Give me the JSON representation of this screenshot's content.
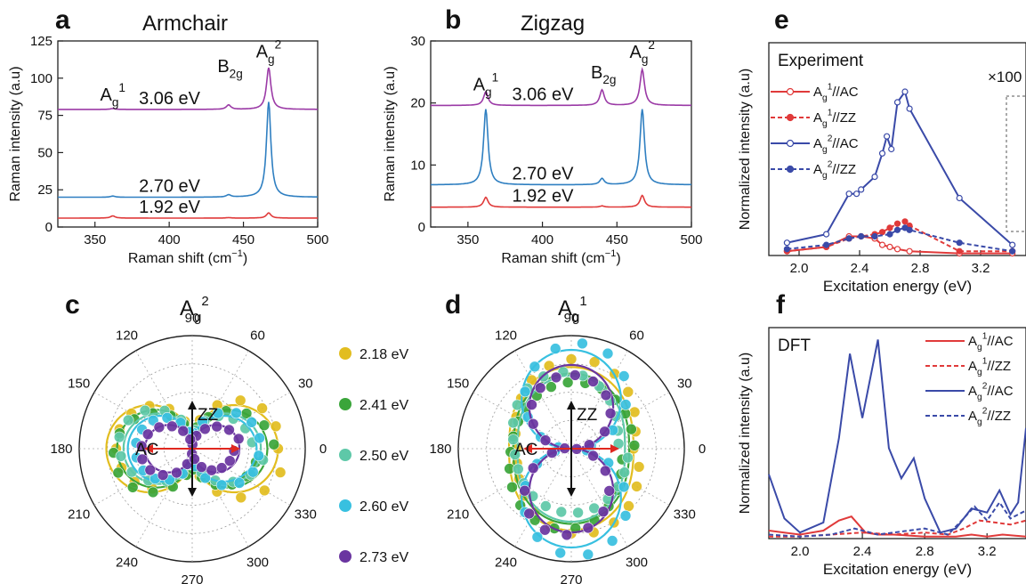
{
  "figure": {
    "panels": [
      {
        "letter": "a",
        "title": "Armchair"
      },
      {
        "letter": "b",
        "title": "Zigzag"
      },
      {
        "letter": "c",
        "title": "A",
        "title_sub": "g",
        "title_sup": "2"
      },
      {
        "letter": "d",
        "title": "A",
        "title_sub": "g",
        "title_sup": "1"
      },
      {
        "letter": "e"
      },
      {
        "letter": "f"
      }
    ]
  },
  "chart_data": [
    {
      "id": "a",
      "type": "line",
      "title": "Armchair",
      "xlabel": "Raman shift (cm⁻¹)",
      "ylabel": "Raman intensity (a.u)",
      "xlim": [
        325,
        500
      ],
      "ylim": [
        0,
        125
      ],
      "xticks": [
        350,
        400,
        450,
        500
      ],
      "yticks": [
        0,
        25,
        50,
        75,
        100,
        125
      ],
      "peak_labels": [
        {
          "text": "A",
          "sub": "g",
          "sup": "1",
          "x": 362,
          "y": 85
        },
        {
          "text": "B",
          "sub": "2g",
          "sup": "",
          "x": 441,
          "y": 104
        },
        {
          "text": "A",
          "sub": "g",
          "sup": "2",
          "x": 467,
          "y": 114
        }
      ],
      "series": [
        {
          "name": "3.06 eV",
          "color": "#9b3aa6",
          "baseline": 79,
          "peaks": [
            {
              "x": 362,
              "h": 0.6
            },
            {
              "x": 440,
              "h": 3
            },
            {
              "x": 467,
              "h": 28
            }
          ]
        },
        {
          "name": "2.70 eV",
          "color": "#2f7fc1",
          "baseline": 20,
          "peaks": [
            {
              "x": 362,
              "h": 0.8
            },
            {
              "x": 440,
              "h": 1.5
            },
            {
              "x": 467,
              "h": 64
            }
          ]
        },
        {
          "name": "1.92 eV",
          "color": "#e03a3a",
          "baseline": 6,
          "peaks": [
            {
              "x": 362,
              "h": 1.5
            },
            {
              "x": 440,
              "h": 0.3
            },
            {
              "x": 467,
              "h": 3.5
            }
          ]
        }
      ]
    },
    {
      "id": "b",
      "type": "line",
      "title": "Zigzag",
      "xlabel": "Raman shift (cm⁻¹)",
      "ylabel": "Raman intensity (a.u)",
      "xlim": [
        325,
        500
      ],
      "ylim": [
        0,
        30
      ],
      "xticks": [
        350,
        400,
        450,
        500
      ],
      "yticks": [
        0,
        10,
        20,
        30
      ],
      "peak_labels": [
        {
          "text": "A",
          "sub": "g",
          "sup": "1",
          "x": 362,
          "y": 22
        },
        {
          "text": "B",
          "sub": "2g",
          "sup": "",
          "x": 441,
          "y": 24
        },
        {
          "text": "A",
          "sub": "g",
          "sup": "2",
          "x": 467,
          "y": 27.3
        }
      ],
      "series": [
        {
          "name": "3.06 eV",
          "color": "#9b3aa6",
          "baseline": 19.6,
          "peaks": [
            {
              "x": 362,
              "h": 2.2
            },
            {
              "x": 440,
              "h": 2.5
            },
            {
              "x": 467,
              "h": 5.8
            }
          ]
        },
        {
          "name": "2.70 eV",
          "color": "#2f7fc1",
          "baseline": 6.8,
          "peaks": [
            {
              "x": 362,
              "h": 12.2
            },
            {
              "x": 440,
              "h": 1
            },
            {
              "x": 467,
              "h": 12.2
            }
          ]
        },
        {
          "name": "1.92 eV",
          "color": "#e03a3a",
          "baseline": 3.2,
          "peaks": [
            {
              "x": 362,
              "h": 1.6
            },
            {
              "x": 440,
              "h": 0.2
            },
            {
              "x": 467,
              "h": 1.9
            }
          ]
        }
      ]
    },
    {
      "id": "c",
      "type": "scatter",
      "polar": true,
      "title": "A_g^2",
      "angle_ticks": [
        0,
        30,
        60,
        90,
        120,
        150,
        180,
        210,
        240,
        270,
        300,
        330
      ],
      "annotations": [
        "AC",
        "ZZ"
      ],
      "series": [
        {
          "name": "2.18 eV",
          "color": "#e2bd1f",
          "a": 0.8,
          "b": 0.14
        },
        {
          "name": "2.41 eV",
          "color": "#3aa53a",
          "a": 0.7,
          "b": 0.18
        },
        {
          "name": "2.50 eV",
          "color": "#5ec8a8",
          "a": 0.64,
          "b": 0.14
        },
        {
          "name": "2.60 eV",
          "color": "#38c0e0",
          "a": 0.6,
          "b": 0.12
        },
        {
          "name": "2.73 eV",
          "color": "#6a35a0",
          "a": 0.44,
          "b": 0.04
        }
      ]
    },
    {
      "id": "d",
      "type": "scatter",
      "polar": true,
      "title": "A_g^1",
      "angle_ticks": [
        0,
        30,
        60,
        90,
        120,
        150,
        180,
        210,
        240,
        270,
        300,
        330
      ],
      "annotations": [
        "AC",
        "ZZ"
      ],
      "series": [
        {
          "name": "2.18 eV",
          "color": "#e2bd1f",
          "a": 0.58,
          "b": 0.76
        },
        {
          "name": "2.41 eV",
          "color": "#3aa53a",
          "a": 0.54,
          "b": 0.7
        },
        {
          "name": "2.50 eV",
          "color": "#5ec8a8",
          "a": 0.5,
          "b": 0.68
        },
        {
          "name": "2.60 eV",
          "color": "#38c0e0",
          "a": 0.1,
          "b": 0.92
        },
        {
          "name": "2.73 eV",
          "color": "#6a35a0",
          "a": 0.04,
          "b": 0.78
        }
      ]
    },
    {
      "id": "e",
      "type": "line",
      "title": "",
      "inner_label": "Experiment",
      "annotation": "×100",
      "xlabel": "Excitation energy (eV)",
      "ylabel": "Normalized intensity (a.u)",
      "xlim": [
        1.8,
        3.5
      ],
      "ylim": [
        0,
        1
      ],
      "xticks": [
        2.0,
        2.4,
        2.8,
        3.2
      ],
      "series": [
        {
          "name": "A_g^1//AC",
          "color": "#e03a3a",
          "dashed": false,
          "marker": "open",
          "x": [
            1.92,
            2.18,
            2.33,
            2.41,
            2.5,
            2.55,
            2.6,
            2.65,
            2.73,
            3.06,
            3.41
          ],
          "y": [
            0.02,
            0.04,
            0.09,
            0.09,
            0.08,
            0.05,
            0.04,
            0.03,
            0.02,
            0.01,
            0.01
          ]
        },
        {
          "name": "A_g^1//ZZ",
          "color": "#e03a3a",
          "dashed": true,
          "marker": "filled",
          "x": [
            1.92,
            2.18,
            2.33,
            2.41,
            2.5,
            2.55,
            2.6,
            2.65,
            2.7,
            2.73,
            3.06,
            3.41
          ],
          "y": [
            0.02,
            0.04,
            0.08,
            0.09,
            0.1,
            0.11,
            0.13,
            0.15,
            0.16,
            0.14,
            0.02,
            0.02
          ]
        },
        {
          "name": "A_g^2//AC",
          "color": "#3a4aa8",
          "dashed": false,
          "marker": "open",
          "x": [
            1.92,
            2.18,
            2.33,
            2.38,
            2.41,
            2.5,
            2.55,
            2.58,
            2.61,
            2.65,
            2.7,
            2.73,
            3.06,
            3.41
          ],
          "y": [
            0.06,
            0.1,
            0.29,
            0.29,
            0.31,
            0.37,
            0.48,
            0.56,
            0.5,
            0.72,
            0.77,
            0.69,
            0.27,
            0.05
          ]
        },
        {
          "name": "A_g^2//ZZ",
          "color": "#3a4aa8",
          "dashed": true,
          "marker": "filled",
          "x": [
            1.92,
            2.18,
            2.33,
            2.41,
            2.5,
            2.6,
            2.65,
            2.7,
            2.73,
            3.06,
            3.41
          ],
          "y": [
            0.03,
            0.05,
            0.08,
            0.09,
            0.09,
            0.1,
            0.12,
            0.13,
            0.12,
            0.06,
            0.02
          ]
        }
      ]
    },
    {
      "id": "f",
      "type": "line",
      "title": "",
      "inner_label": "DFT",
      "xlabel": "Excitation energy (eV)",
      "ylabel": "Normalized intensity (a.u)",
      "xlim": [
        1.8,
        3.45
      ],
      "ylim": [
        0,
        1.05
      ],
      "xticks": [
        2.0,
        2.4,
        2.8,
        3.2
      ],
      "series": [
        {
          "name": "A_g^1//AC",
          "color": "#e03a3a",
          "dashed": false,
          "x": [
            1.8,
            2.0,
            2.15,
            2.25,
            2.33,
            2.42,
            2.5,
            2.6,
            2.8,
            3.0,
            3.1,
            3.2,
            3.3,
            3.45
          ],
          "y": [
            0.04,
            0.02,
            0.04,
            0.09,
            0.11,
            0.03,
            0.02,
            0.02,
            0.01,
            0.01,
            0.02,
            0.01,
            0.02,
            0.01
          ]
        },
        {
          "name": "A_g^1//ZZ",
          "color": "#e03a3a",
          "dashed": true,
          "x": [
            1.8,
            2.0,
            2.2,
            2.4,
            2.6,
            2.8,
            2.95,
            3.05,
            3.15,
            3.25,
            3.35,
            3.45
          ],
          "y": [
            0.01,
            0.01,
            0.02,
            0.03,
            0.02,
            0.03,
            0.02,
            0.05,
            0.09,
            0.08,
            0.07,
            0.09
          ]
        },
        {
          "name": "A_g^2//AC",
          "color": "#3a4aa8",
          "dashed": false,
          "x": [
            1.8,
            1.9,
            2.0,
            2.15,
            2.25,
            2.32,
            2.4,
            2.5,
            2.57,
            2.65,
            2.73,
            2.8,
            2.9,
            3.0,
            3.1,
            3.2,
            3.28,
            3.35,
            3.4,
            3.45
          ],
          "y": [
            0.32,
            0.1,
            0.03,
            0.08,
            0.5,
            0.92,
            0.6,
            0.99,
            0.45,
            0.3,
            0.4,
            0.2,
            0.03,
            0.05,
            0.15,
            0.13,
            0.24,
            0.12,
            0.18,
            0.55
          ]
        },
        {
          "name": "A_g^2//ZZ",
          "color": "#3a4aa8",
          "dashed": true,
          "x": [
            1.8,
            2.0,
            2.2,
            2.35,
            2.5,
            2.6,
            2.8,
            2.95,
            3.05,
            3.12,
            3.2,
            3.28,
            3.35,
            3.45
          ],
          "y": [
            0.02,
            0.01,
            0.02,
            0.05,
            0.02,
            0.03,
            0.05,
            0.02,
            0.1,
            0.16,
            0.09,
            0.18,
            0.1,
            0.14
          ]
        }
      ]
    }
  ]
}
